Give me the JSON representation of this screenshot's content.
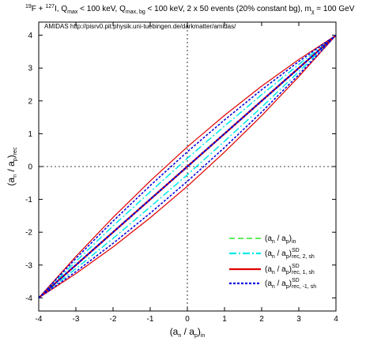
{
  "chart_data": {
    "type": "line",
    "title": [
      "19",
      "F + ",
      "127",
      "I, Q",
      "max",
      " < 100 keV, Q",
      "max, bg",
      " < 100 keV, 2 x 50 events (20% constant bg), m",
      "χ",
      " = 100 GeV"
    ],
    "annotation": "AMIDAS   http://pisrv0.pit.physik.uni-tuebingen.de/darkmatter/amidas/",
    "x_label": [
      "(a",
      "n",
      " / a",
      "p",
      ")",
      "in"
    ],
    "y_label": [
      "(a",
      "n",
      " / a",
      "p",
      ")",
      "rec"
    ],
    "x": [
      -4,
      -3,
      -2,
      -1,
      0,
      1,
      2,
      3,
      4
    ],
    "xlim": [
      -4,
      4
    ],
    "ylim": [
      -4.4,
      4.4
    ],
    "xticks": [
      -4,
      -3,
      -2,
      -1,
      0,
      1,
      2,
      3,
      4
    ],
    "yticks": [
      -4,
      -3,
      -2,
      -1,
      0,
      1,
      2,
      3,
      4
    ],
    "zero_lines": true,
    "legend": "lower right",
    "series": [
      {
        "name": [
          "(a",
          "n",
          " / a",
          "p",
          ")",
          "in"
        ],
        "color": "#00e000",
        "style": "dashed",
        "values": [
          -4,
          -3,
          -2,
          -1,
          0,
          1,
          2,
          3,
          4
        ]
      },
      {
        "name": [
          "(a",
          "n",
          " / a",
          "p",
          ")",
          "SD",
          "rec, 2, sh"
        ],
        "color": "#00e8e8",
        "style": "dashdot",
        "values": [
          -4,
          -3,
          -2,
          -1,
          0,
          1,
          2,
          3,
          4
        ],
        "upper": [
          -4,
          -2.89,
          -1.81,
          -0.77,
          0.25,
          1.23,
          2.19,
          3.11,
          4
        ],
        "lower": [
          -4,
          -3.11,
          -2.19,
          -1.23,
          -0.25,
          0.77,
          1.81,
          2.89,
          4
        ]
      },
      {
        "name": [
          "(a",
          "n",
          " / a",
          "p",
          ")",
          "SD",
          "rec, 1, sh"
        ],
        "color": "#e00000",
        "style": "solid",
        "values": [
          -4,
          -3,
          -2,
          -1,
          0,
          1,
          2,
          3,
          4
        ],
        "upper": [
          -4,
          -2.74,
          -1.55,
          -0.44,
          0.6,
          1.56,
          2.45,
          3.26,
          4
        ],
        "lower": [
          -4,
          -3.26,
          -2.45,
          -1.56,
          -0.6,
          0.44,
          1.55,
          2.74,
          4
        ]
      },
      {
        "name": [
          "(a",
          "n",
          " / a",
          "p",
          ")",
          "SD",
          "rec, -1, sh"
        ],
        "color": "#0000e0",
        "style": "dotted",
        "values": [
          -4,
          -3,
          -2,
          -1,
          0,
          1,
          2,
          3,
          4
        ],
        "upper": [
          -4,
          -2.8,
          -1.66,
          -0.58,
          0.45,
          1.42,
          2.34,
          3.2,
          4
        ],
        "lower": [
          -4,
          -3.2,
          -2.34,
          -1.42,
          -0.45,
          0.58,
          1.66,
          2.8,
          4
        ]
      }
    ]
  }
}
